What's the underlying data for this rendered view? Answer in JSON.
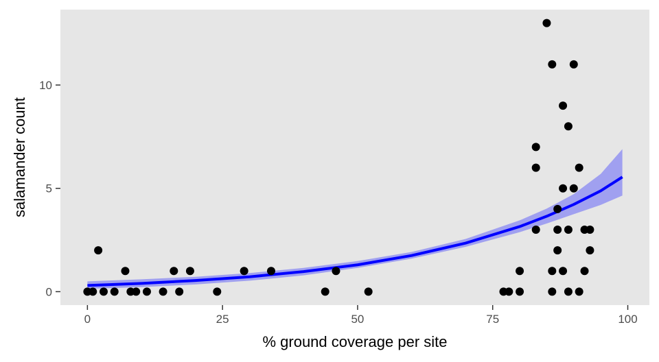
{
  "chart_data": {
    "type": "scatter",
    "title": "",
    "xlabel": "% ground coverage per site",
    "ylabel": "salamander count",
    "xlim": [
      -5,
      104
    ],
    "ylim": [
      -0.65,
      13.65
    ],
    "x_ticks": [
      0,
      25,
      50,
      75,
      100
    ],
    "x_tick_labels": [
      "0",
      "25",
      "50",
      "75",
      "100"
    ],
    "y_ticks": [
      0,
      5,
      10
    ],
    "y_tick_labels": [
      "0",
      "5",
      "10"
    ],
    "grid": false,
    "legend": "none",
    "background_color": "#e6e6e6",
    "point_color": "#000000",
    "fit_color": "#0000ff",
    "band_color": "#a0a0f0",
    "points": [
      {
        "x": 0,
        "y": 0
      },
      {
        "x": 1,
        "y": 0
      },
      {
        "x": 2,
        "y": 2
      },
      {
        "x": 3,
        "y": 0
      },
      {
        "x": 5,
        "y": 0
      },
      {
        "x": 7,
        "y": 1
      },
      {
        "x": 8,
        "y": 0
      },
      {
        "x": 9,
        "y": 0
      },
      {
        "x": 11,
        "y": 0
      },
      {
        "x": 14,
        "y": 0
      },
      {
        "x": 16,
        "y": 1
      },
      {
        "x": 17,
        "y": 0
      },
      {
        "x": 19,
        "y": 1
      },
      {
        "x": 24,
        "y": 0
      },
      {
        "x": 29,
        "y": 1
      },
      {
        "x": 34,
        "y": 1
      },
      {
        "x": 44,
        "y": 0
      },
      {
        "x": 46,
        "y": 1
      },
      {
        "x": 52,
        "y": 0
      },
      {
        "x": 77,
        "y": 0
      },
      {
        "x": 78,
        "y": 0
      },
      {
        "x": 80,
        "y": 0
      },
      {
        "x": 80,
        "y": 1
      },
      {
        "x": 83,
        "y": 7
      },
      {
        "x": 83,
        "y": 6
      },
      {
        "x": 83,
        "y": 3
      },
      {
        "x": 85,
        "y": 13
      },
      {
        "x": 86,
        "y": 11
      },
      {
        "x": 86,
        "y": 1
      },
      {
        "x": 86,
        "y": 0
      },
      {
        "x": 87,
        "y": 4
      },
      {
        "x": 87,
        "y": 3
      },
      {
        "x": 87,
        "y": 2
      },
      {
        "x": 88,
        "y": 9
      },
      {
        "x": 88,
        "y": 5
      },
      {
        "x": 88,
        "y": 1
      },
      {
        "x": 89,
        "y": 8
      },
      {
        "x": 89,
        "y": 3
      },
      {
        "x": 89,
        "y": 0
      },
      {
        "x": 90,
        "y": 11
      },
      {
        "x": 90,
        "y": 5
      },
      {
        "x": 91,
        "y": 6
      },
      {
        "x": 91,
        "y": 0
      },
      {
        "x": 92,
        "y": 3
      },
      {
        "x": 92,
        "y": 1
      },
      {
        "x": 93,
        "y": 3
      },
      {
        "x": 93,
        "y": 2
      }
    ],
    "fit": {
      "x": [
        0,
        10,
        20,
        30,
        40,
        50,
        60,
        70,
        80,
        85,
        90,
        95,
        99
      ],
      "y": [
        0.3,
        0.4,
        0.54,
        0.72,
        0.97,
        1.3,
        1.75,
        2.35,
        3.15,
        3.65,
        4.22,
        4.88,
        5.55
      ],
      "lower": [
        0.14,
        0.22,
        0.35,
        0.53,
        0.79,
        1.15,
        1.6,
        2.17,
        2.88,
        3.3,
        3.75,
        4.2,
        4.65
      ],
      "upper": [
        0.5,
        0.6,
        0.72,
        0.9,
        1.15,
        1.48,
        1.92,
        2.55,
        3.45,
        4.02,
        4.72,
        5.7,
        6.9
      ]
    }
  }
}
